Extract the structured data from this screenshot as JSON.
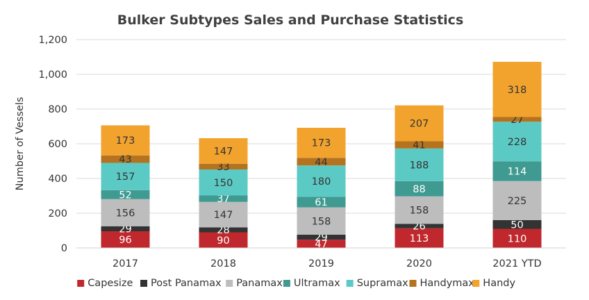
{
  "chart_data": {
    "type": "bar",
    "stacked": true,
    "title": "Bulker Subtypes Sales and Purchase Statistics",
    "xlabel": "",
    "ylabel": "Number of Vessels",
    "ylim": [
      0,
      1200
    ],
    "yticks": [
      0,
      200,
      400,
      600,
      800,
      1000,
      1200
    ],
    "ytick_labels": [
      "0",
      "200",
      "400",
      "600",
      "800",
      "1,000",
      "1,200"
    ],
    "categories": [
      "2017",
      "2018",
      "2019",
      "2020",
      "2021 YTD"
    ],
    "grid": true,
    "legend_position": "bottom",
    "series": [
      {
        "name": "Capesize",
        "color": "#c0282d",
        "label_color": "#ffffff",
        "values": [
          96,
          90,
          47,
          113,
          110
        ]
      },
      {
        "name": "Post Panamax",
        "color": "#333333",
        "label_color": "#ffffff",
        "values": [
          29,
          28,
          29,
          26,
          50
        ]
      },
      {
        "name": "Panamax",
        "color": "#bdbdbd",
        "label_color": "#333333",
        "values": [
          156,
          147,
          158,
          158,
          225
        ]
      },
      {
        "name": "Ultramax",
        "color": "#3f9a92",
        "label_color": "#ffffff",
        "values": [
          52,
          37,
          61,
          88,
          114
        ]
      },
      {
        "name": "Supramax",
        "color": "#5ccac4",
        "label_color": "#333333",
        "values": [
          157,
          150,
          180,
          188,
          228
        ]
      },
      {
        "name": "Handymax",
        "color": "#b5731f",
        "label_color": "#333333",
        "values": [
          43,
          33,
          44,
          41,
          27
        ]
      },
      {
        "name": "Handy",
        "color": "#f2a32e",
        "label_color": "#333333",
        "values": [
          173,
          147,
          173,
          207,
          318
        ]
      }
    ]
  }
}
